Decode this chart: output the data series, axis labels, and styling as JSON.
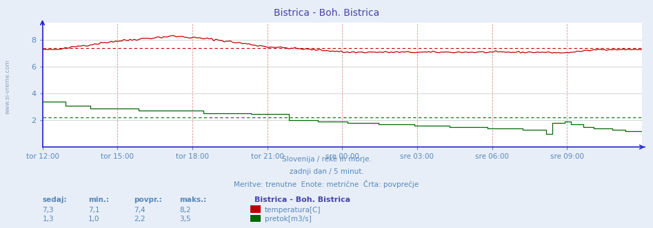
{
  "title": "Bistrica - Boh. Bistrica",
  "title_color": "#4444aa",
  "bg_color": "#e8eef8",
  "plot_bg_color": "#ffffff",
  "grid_color_h": "#cccccc",
  "grid_color_v": "#e8a0a0",
  "axis_color": "#2222cc",
  "text_color": "#5588bb",
  "ylim": [
    0,
    9.3
  ],
  "yticks": [
    2,
    4,
    6,
    8
  ],
  "xlabel_ticks": [
    "tor 12:00",
    "tor 15:00",
    "tor 18:00",
    "tor 21:00",
    "sre 00:00",
    "sre 03:00",
    "sre 06:00",
    "sre 09:00"
  ],
  "n_points": 288,
  "temp_color": "#bb0000",
  "flow_color": "#006600",
  "avg_temp": 7.4,
  "avg_flow": 2.2,
  "footer_lines": [
    "Slovenija / reke in morje.",
    "zadnji dan / 5 minut.",
    "Meritve: trenutne  Enote: metrične  Črta: povprečje"
  ],
  "legend_title": "Bistrica - Boh. Bistrica",
  "legend_items": [
    {
      "label": "temperatura[C]",
      "color": "#bb0000"
    },
    {
      "label": "pretok[m3/s]",
      "color": "#006600"
    }
  ],
  "table_headers": [
    "sedaj:",
    "min.:",
    "povpr.:",
    "maks.:"
  ],
  "table_data": [
    [
      "7,3",
      "7,1",
      "7,4",
      "8,2"
    ],
    [
      "1,3",
      "1,0",
      "2,2",
      "3,5"
    ]
  ],
  "watermark_text": "www.si-vreme.com",
  "left_label": "www.si-vreme.com"
}
